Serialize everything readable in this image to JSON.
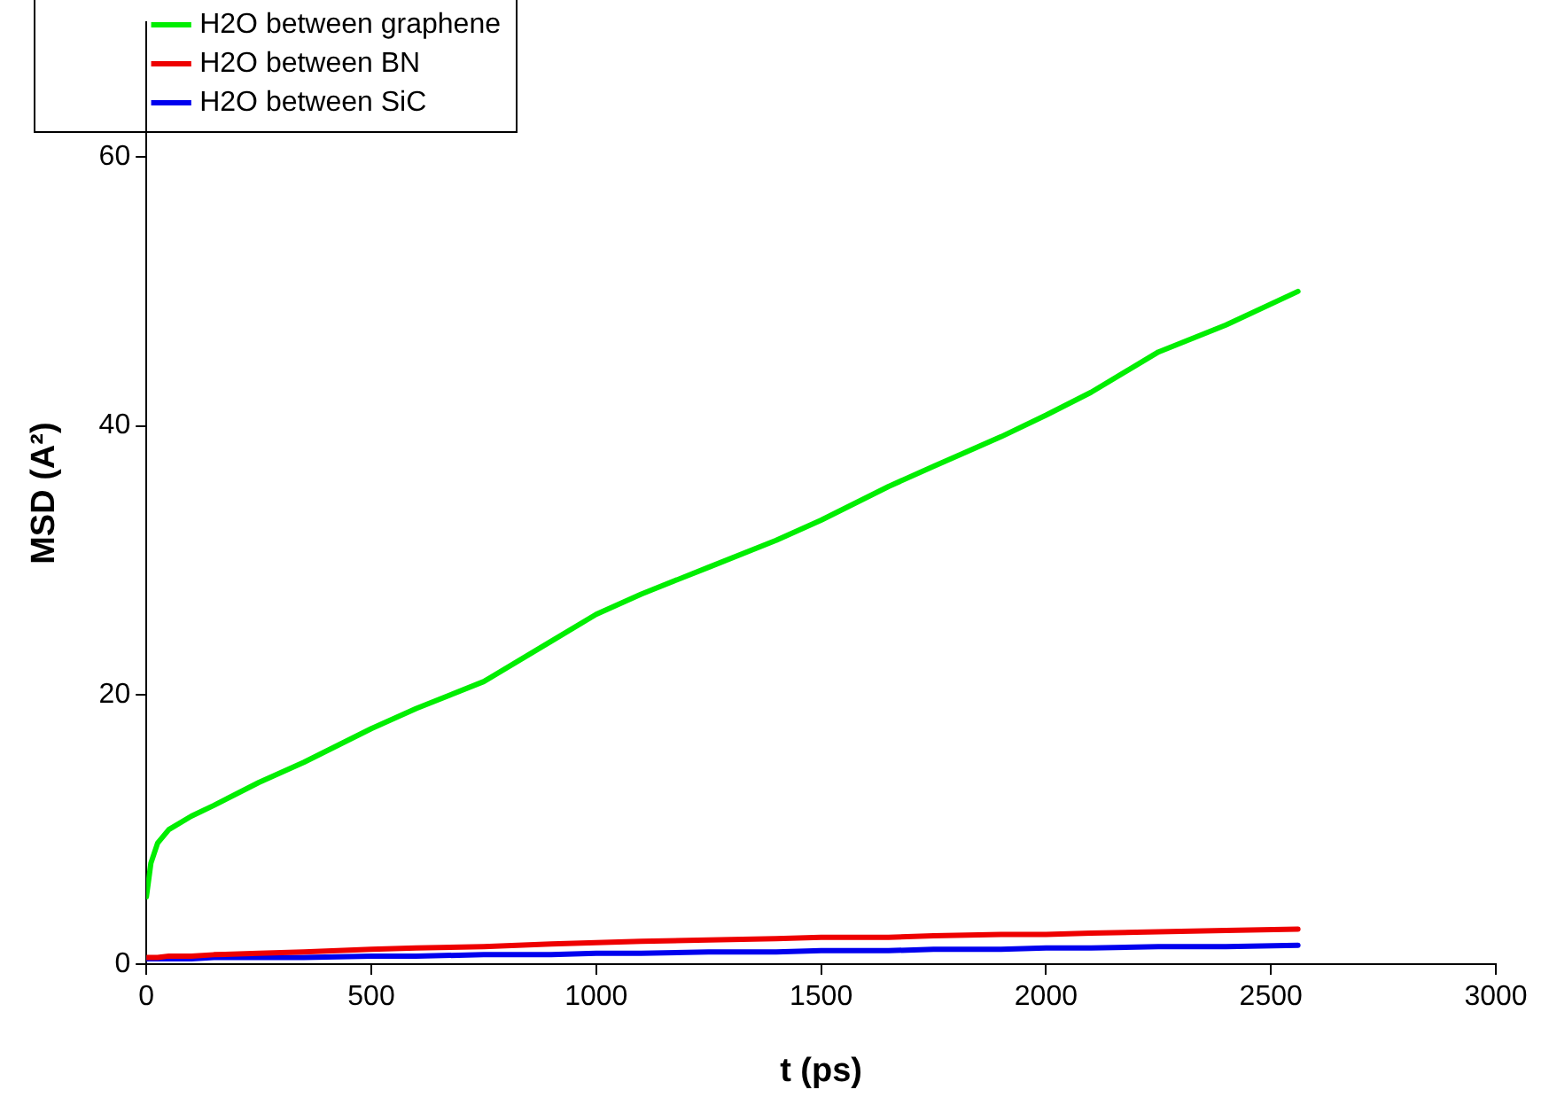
{
  "chart_data": {
    "type": "line",
    "xlabel": "t (ps)",
    "ylabel": "MSD (A²)",
    "xlim": [
      0,
      3000
    ],
    "xticks": [
      0,
      500,
      1000,
      1500,
      2000,
      2500,
      3000
    ],
    "ylim": [
      0,
      70
    ],
    "yticks": [
      0,
      20,
      40,
      60
    ],
    "grid": false,
    "legend": "top left",
    "marker": "none",
    "line_style": "solid",
    "x": [
      0,
      10,
      25,
      50,
      100,
      150,
      250,
      350,
      500,
      600,
      750,
      900,
      1000,
      1100,
      1250,
      1400,
      1500,
      1650,
      1750,
      1900,
      2000,
      2100,
      2250,
      2400,
      2560
    ],
    "series": [
      {
        "name": "H2O between graphene",
        "color": "#00ee00",
        "values": [
          5,
          7.5,
          9,
          10,
          11,
          11.8,
          13.5,
          15,
          17.5,
          19,
          21,
          24,
          26,
          27.5,
          29.5,
          31.5,
          33,
          35.5,
          37,
          39.2,
          40.8,
          42.5,
          45.5,
          47.5,
          50
        ]
      },
      {
        "name": "H2O between BN",
        "color": "#ee0000",
        "values": [
          0.5,
          0.5,
          0.5,
          0.6,
          0.6,
          0.7,
          0.8,
          0.9,
          1.1,
          1.2,
          1.3,
          1.5,
          1.6,
          1.7,
          1.8,
          1.9,
          2,
          2,
          2.1,
          2.2,
          2.2,
          2.3,
          2.4,
          2.5,
          2.6
        ]
      },
      {
        "name": "H2O between SiC",
        "color": "#0000ee",
        "values": [
          0.4,
          0.4,
          0.4,
          0.4,
          0.4,
          0.5,
          0.5,
          0.5,
          0.6,
          0.6,
          0.7,
          0.7,
          0.8,
          0.8,
          0.9,
          0.9,
          1,
          1,
          1.1,
          1.1,
          1.2,
          1.2,
          1.3,
          1.3,
          1.4
        ]
      }
    ]
  }
}
